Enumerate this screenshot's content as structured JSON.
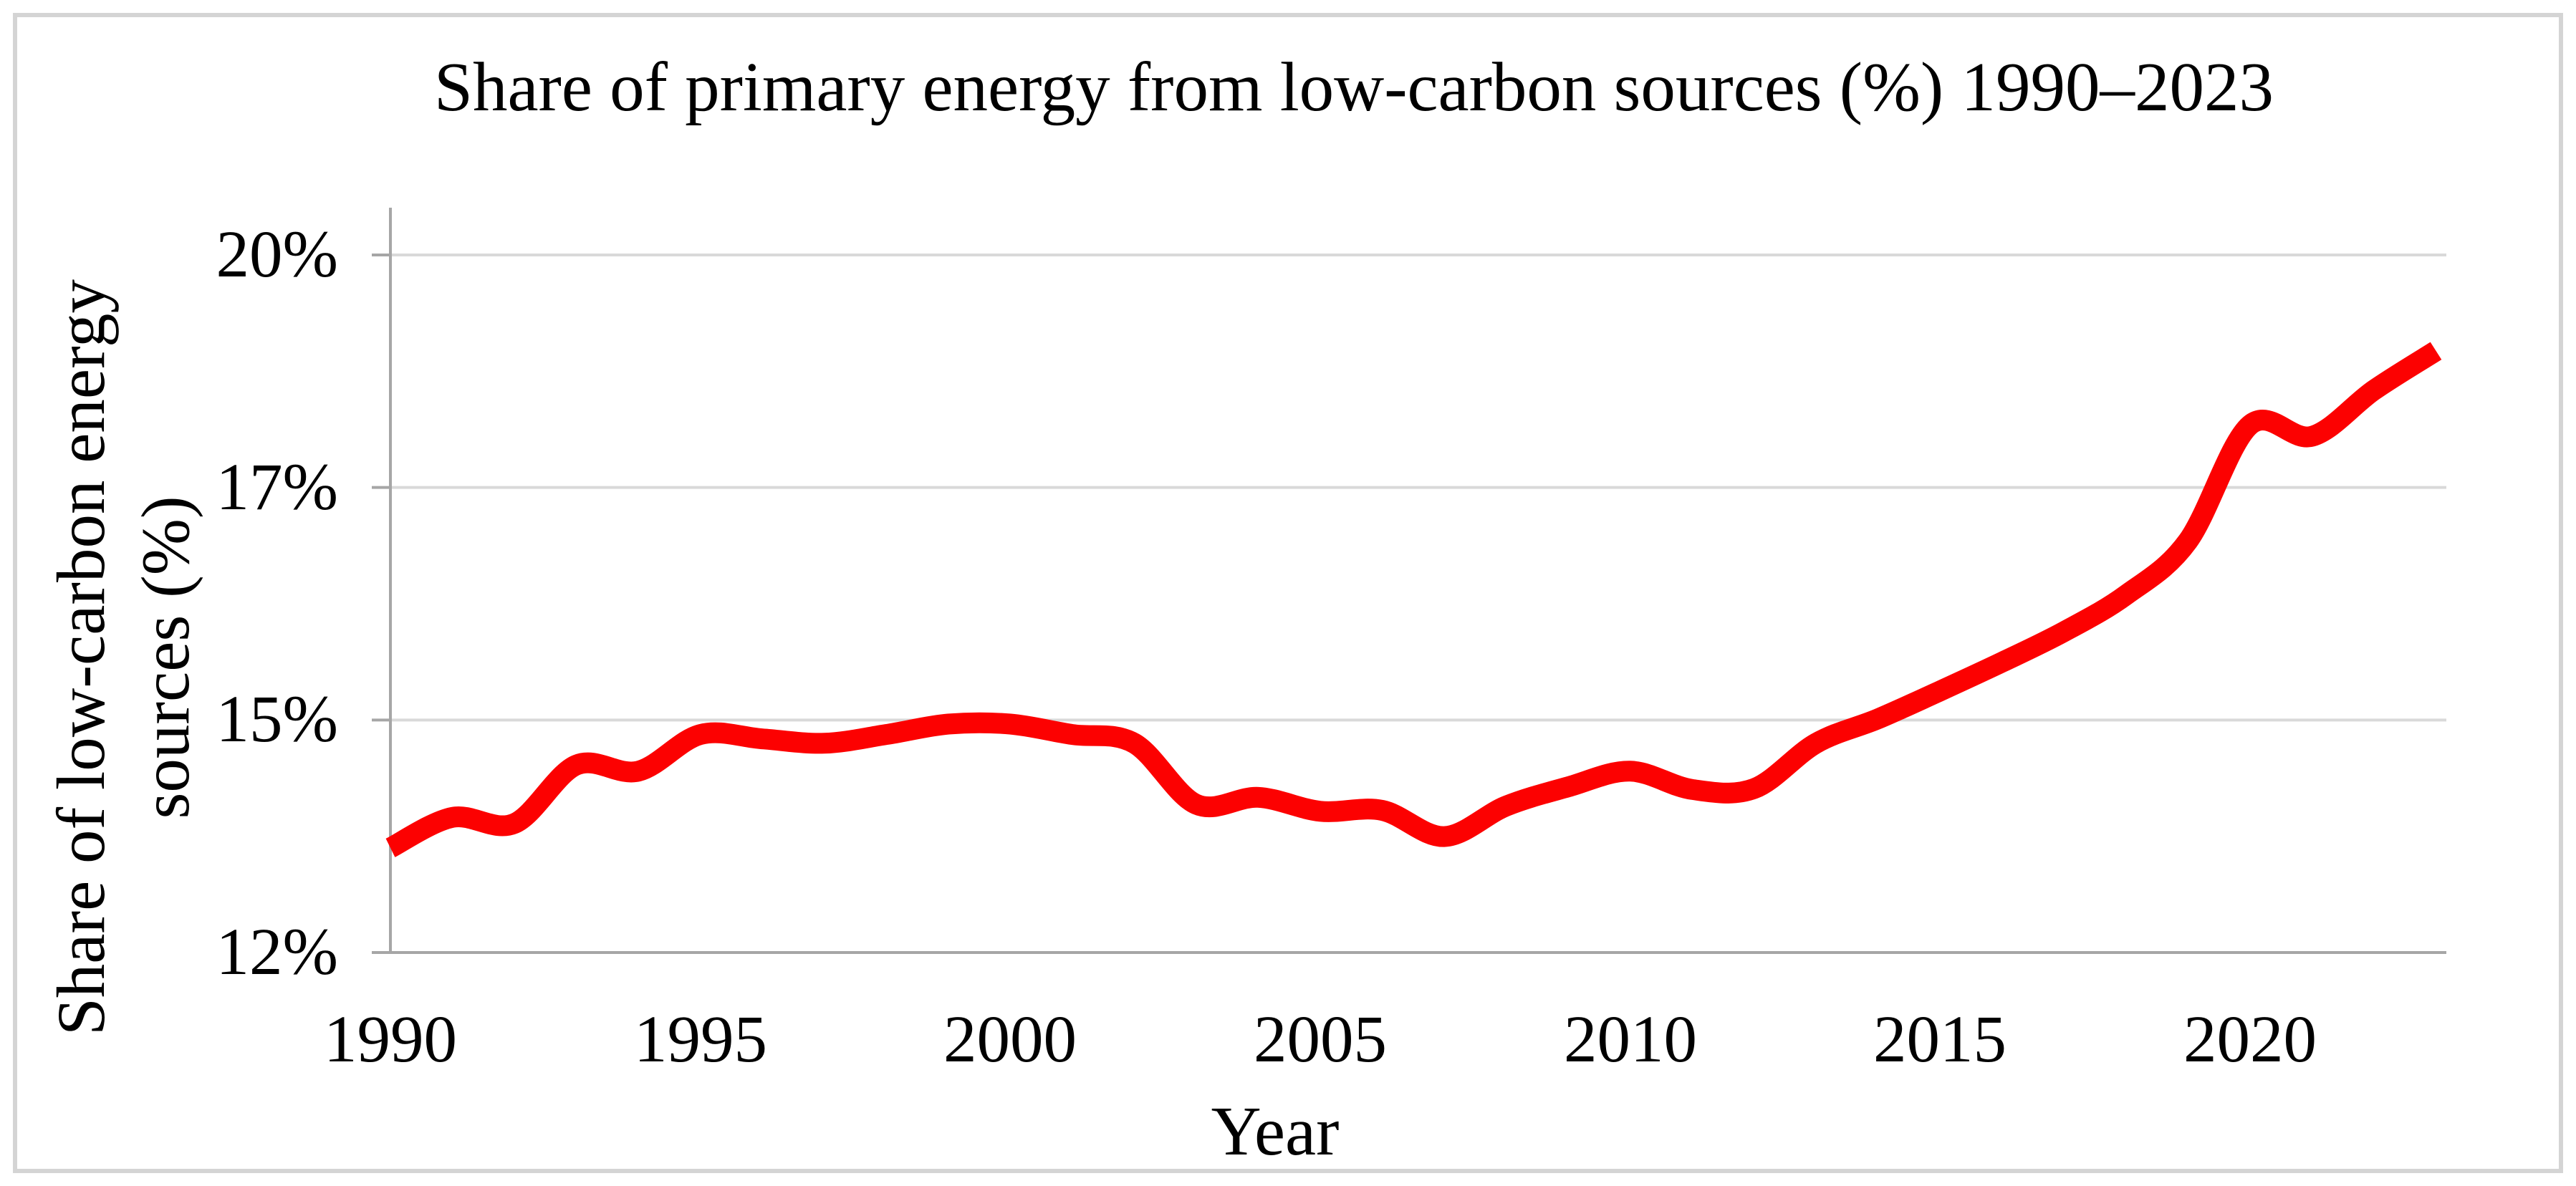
{
  "figure": {
    "title": "Share of primary energy from low-carbon sources (%) 1990–2023"
  },
  "axes": {
    "x_title": "Year",
    "y_title_line1": "Share of low-carbon energy",
    "y_title_line2": "sources (%)"
  },
  "colors": {
    "line": "#fc0101",
    "gridline": "#d9d9d9",
    "axis_line": "#a6a6a6",
    "text": "#000000",
    "frame_border": "#d4d4d4",
    "background": "#ffffff"
  },
  "chart_data": {
    "type": "line",
    "title": "Share of primary energy from low-carbon sources (%) 1990–2023",
    "xlabel": "Year",
    "ylabel": "Share of low-carbon energy sources (%)",
    "x_tick_labels": [
      "1990",
      "1995",
      "2000",
      "2005",
      "2010",
      "2015",
      "2020"
    ],
    "x_tick_years": [
      1990,
      1995,
      2000,
      2005,
      2010,
      2015,
      2020
    ],
    "y_ticks": [
      {
        "label": "20%",
        "value": 20
      },
      {
        "label": "17%",
        "value": 17.3333
      },
      {
        "label": "15%",
        "value": 14.6667
      },
      {
        "label": "12%",
        "value": 12
      }
    ],
    "xlim": [
      1990,
      2023
    ],
    "ylim": [
      12,
      20.6
    ],
    "grid": "horizontal-only",
    "legend": "none",
    "line_style": "smooth",
    "series": [
      {
        "name": "Share of primary energy from low-carbon sources (%)",
        "x": [
          1990,
          1991,
          1992,
          1993,
          1994,
          1995,
          1996,
          1997,
          1998,
          1999,
          2000,
          2001,
          2002,
          2003,
          2004,
          2005,
          2006,
          2007,
          2008,
          2009,
          2010,
          2011,
          2012,
          2013,
          2014,
          2015,
          2016,
          2017,
          2018,
          2019,
          2020,
          2021,
          2022,
          2023
        ],
        "values": [
          13.2,
          13.55,
          13.48,
          14.15,
          14.08,
          14.5,
          14.45,
          14.4,
          14.5,
          14.62,
          14.62,
          14.5,
          14.4,
          13.7,
          13.78,
          13.62,
          13.63,
          13.33,
          13.68,
          13.9,
          14.08,
          13.87,
          13.88,
          14.4,
          14.68,
          15.0,
          15.33,
          15.68,
          16.1,
          16.72,
          18.05,
          17.92,
          18.45,
          18.9
        ]
      }
    ]
  }
}
